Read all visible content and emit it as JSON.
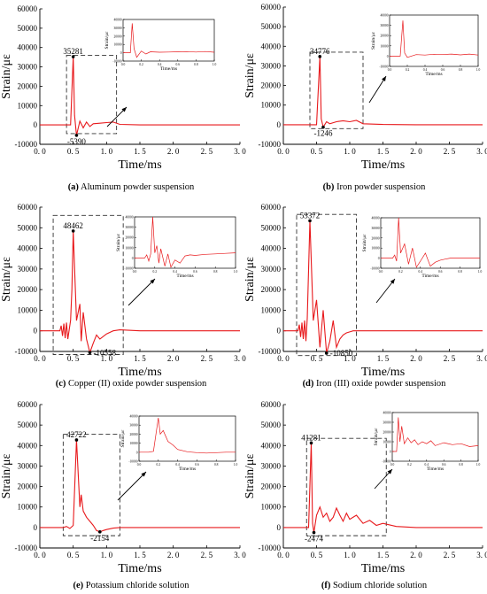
{
  "chart_data": [
    {
      "type": "line",
      "caption_tag": "(a)",
      "caption": "Aluminum powder suspension",
      "xlabel": "Time/ms",
      "ylabel": "Strain/με",
      "xlim": [
        0,
        3
      ],
      "ylim": [
        -10000,
        60000
      ],
      "xticks": [
        "0. 0",
        "0. 5",
        "1. 0",
        "1. 5",
        "2. 0",
        "2. 5",
        "3. 0"
      ],
      "yticks": [
        "-10000",
        "0",
        "10000",
        "20000",
        "30000",
        "40000",
        "50000",
        "60000"
      ],
      "series": [
        {
          "x": [
            0,
            0.46,
            0.5,
            0.52,
            0.55,
            0.6,
            0.65,
            0.7,
            0.75,
            0.8,
            0.9,
            1.0,
            1.1,
            1.2,
            1.5,
            2.0,
            3.0
          ],
          "y": [
            0,
            0,
            35281,
            5000,
            -5390,
            2000,
            -1500,
            1500,
            -800,
            600,
            900,
            1200,
            1500,
            300,
            0,
            0,
            0
          ]
        }
      ],
      "annotations": [
        {
          "label": "35281",
          "x": 0.5,
          "y": 35281,
          "position": "above"
        },
        {
          "label": "-5390",
          "x": 0.55,
          "y": -5390,
          "position": "below"
        }
      ],
      "zoom_box": {
        "x": [
          0.4,
          1.15
        ],
        "y": [
          -4500,
          36000
        ]
      },
      "inset": {
        "xlabel": "Time/ms",
        "ylabel": "Strain/με",
        "xlim": [
          0,
          1
        ],
        "ylim": [
          -10000,
          40000
        ],
        "xticks": [
          "0.0",
          "0.2",
          "0.4",
          "0.6",
          "0.8",
          "1.0"
        ],
        "yticks": [
          "-10000",
          "0",
          "10000",
          "20000",
          "30000",
          "40000"
        ],
        "series": [
          {
            "x": [
              0,
              0.08,
              0.1,
              0.12,
              0.15,
              0.2,
              0.25,
              0.3,
              0.4,
              0.5,
              0.6,
              0.7,
              0.8,
              0.9,
              1.0
            ],
            "y": [
              0,
              0,
              35281,
              5000,
              -5390,
              2000,
              -1500,
              1200,
              600,
              900,
              1200,
              1400,
              800,
              1500,
              600
            ]
          }
        ]
      }
    },
    {
      "type": "line",
      "caption_tag": "(b)",
      "caption": "Iron powder suspension",
      "xlabel": "Time/ms",
      "ylabel": "Strain/με",
      "xlim": [
        0,
        3
      ],
      "ylim": [
        -10000,
        60000
      ],
      "xticks": [
        "0. 0",
        "0. 5",
        "1. 0",
        "1. 5",
        "2. 0",
        "2. 5",
        "3. 0"
      ],
      "yticks": [
        "-10000",
        "0",
        "10000",
        "20000",
        "30000",
        "40000",
        "50000",
        "60000"
      ],
      "series": [
        {
          "x": [
            0,
            0.5,
            0.55,
            0.57,
            0.6,
            0.65,
            0.7,
            0.8,
            0.9,
            1.0,
            1.1,
            1.2,
            1.5,
            2.0,
            3.0
          ],
          "y": [
            0,
            0,
            34776,
            3000,
            -1246,
            1500,
            500,
            1500,
            2000,
            1500,
            2200,
            500,
            100,
            0,
            0
          ]
        }
      ],
      "annotations": [
        {
          "label": "34776",
          "x": 0.55,
          "y": 34776,
          "position": "above"
        },
        {
          "label": "-1246",
          "x": 0.6,
          "y": -1246,
          "position": "below"
        }
      ],
      "zoom_box": {
        "x": [
          0.4,
          1.2
        ],
        "y": [
          -2000,
          37000
        ]
      },
      "inset": {
        "xlabel": "Time/ms",
        "ylabel": "Strain/με",
        "xlim": [
          0,
          1
        ],
        "ylim": [
          -10000,
          40000
        ],
        "xticks": [
          "0.0",
          "0.2",
          "0.4",
          "0.6",
          "0.8",
          "1.0"
        ],
        "yticks": [
          "-10000",
          "0",
          "10000",
          "20000",
          "30000",
          "40000"
        ],
        "series": [
          {
            "x": [
              0,
              0.12,
              0.15,
              0.17,
              0.2,
              0.3,
              0.4,
              0.5,
              0.6,
              0.7,
              0.8,
              0.9,
              1.0
            ],
            "y": [
              0,
              0,
              34776,
              3000,
              -1246,
              1500,
              1000,
              1800,
              1500,
              2000,
              1200,
              2000,
              1000
            ]
          }
        ]
      }
    },
    {
      "type": "line",
      "caption_tag": "(c)",
      "caption": "Copper (II) oxide powder suspension",
      "xlabel": "Time/ms",
      "ylabel": "Strain/με",
      "xlim": [
        0,
        3
      ],
      "ylim": [
        -10000,
        60000
      ],
      "xticks": [
        "0. 0",
        "0. 5",
        "1. 0",
        "1. 5",
        "2. 0",
        "2. 5",
        "3. 0"
      ],
      "yticks": [
        "-10000",
        "0",
        "10000",
        "20000",
        "30000",
        "40000",
        "50000",
        "60000"
      ],
      "series": [
        {
          "x": [
            0,
            0.3,
            0.32,
            0.34,
            0.36,
            0.38,
            0.4,
            0.42,
            0.46,
            0.48,
            0.5,
            0.55,
            0.6,
            0.62,
            0.65,
            0.7,
            0.75,
            0.8,
            0.85,
            0.9,
            1.0,
            1.1,
            1.2,
            1.5,
            2.0,
            3.0
          ],
          "y": [
            0,
            0,
            2500,
            -2500,
            3500,
            -3500,
            4000,
            -4000,
            5000,
            20000,
            48462,
            5000,
            13000,
            -5000,
            9000,
            -4000,
            -10558,
            -6000,
            -2000,
            -4000,
            -1500,
            0,
            500,
            0,
            0,
            0
          ]
        }
      ],
      "annotations": [
        {
          "label": "48462",
          "x": 0.5,
          "y": 48462,
          "position": "above"
        },
        {
          "label": "-10558",
          "x": 0.75,
          "y": -10558,
          "position": "right"
        }
      ],
      "zoom_box": {
        "x": [
          0.2,
          1.25
        ],
        "y": [
          -11500,
          56000
        ]
      },
      "inset": {
        "xlabel": "Time/ms",
        "ylabel": "Strain/με",
        "xlim": [
          0,
          1
        ],
        "ylim": [
          -10000,
          40000
        ],
        "xticks": [
          "0.0",
          "0.2",
          "0.4",
          "0.6",
          "0.8",
          "1.0"
        ],
        "yticks": [
          "-10000",
          "0",
          "10000",
          "20000",
          "30000",
          "40000"
        ],
        "series": [
          {
            "x": [
              0,
              0.1,
              0.12,
              0.14,
              0.16,
              0.18,
              0.2,
              0.22,
              0.24,
              0.26,
              0.3,
              0.33,
              0.36,
              0.4,
              0.45,
              0.5,
              0.55,
              0.6,
              0.7,
              0.8,
              0.9,
              1.0
            ],
            "y": [
              0,
              0,
              3000,
              -3000,
              4000,
              40000,
              5000,
              12000,
              -5000,
              9000,
              -8000,
              4000,
              -9000,
              -2000,
              -5000,
              2000,
              3000,
              2500,
              3500,
              4000,
              4500,
              5000
            ]
          }
        ]
      }
    },
    {
      "type": "line",
      "caption_tag": "(d)",
      "caption": "Iron (III) oxide powder suspension",
      "xlabel": "Time/ms",
      "ylabel": "Strain/με",
      "xlim": [
        0,
        3
      ],
      "ylim": [
        -10000,
        60000
      ],
      "xticks": [
        "0. 0",
        "0. 5",
        "1. 0",
        "1. 5",
        "2. 0",
        "2. 5",
        "3. 0"
      ],
      "yticks": [
        "-10000",
        "0",
        "10000",
        "20000",
        "30000",
        "40000",
        "50000",
        "60000"
      ],
      "series": [
        {
          "x": [
            0,
            0.22,
            0.24,
            0.26,
            0.28,
            0.3,
            0.32,
            0.34,
            0.36,
            0.4,
            0.45,
            0.5,
            0.55,
            0.6,
            0.65,
            0.7,
            0.75,
            0.8,
            0.85,
            0.9,
            0.95,
            1.0,
            1.05,
            1.2,
            2.0,
            3.0
          ],
          "y": [
            0,
            0,
            3000,
            -3000,
            4000,
            -4000,
            5000,
            -5000,
            6000,
            53372,
            5000,
            15000,
            -8000,
            10000,
            -10850,
            -5000,
            5000,
            -8000,
            -4000,
            -2000,
            -1000,
            -500,
            0,
            0,
            0,
            0
          ]
        }
      ],
      "annotations": [
        {
          "label": "53372",
          "x": 0.4,
          "y": 53372,
          "position": "above"
        },
        {
          "label": "-10850",
          "x": 0.65,
          "y": -10850,
          "position": "right"
        }
      ],
      "zoom_box": {
        "x": [
          0.2,
          1.1
        ],
        "y": [
          -12000,
          56500
        ]
      },
      "inset": {
        "xlabel": "Time/ms",
        "ylabel": "Strain/με",
        "xlim": [
          0,
          1
        ],
        "ylim": [
          -10000,
          40000
        ],
        "xticks": [
          "0.0",
          "0.2",
          "0.4",
          "0.6",
          "0.8",
          "1.0"
        ],
        "yticks": [
          "-10000",
          "0",
          "10000",
          "20000",
          "30000",
          "40000"
        ],
        "series": [
          {
            "x": [
              0,
              0.12,
              0.14,
              0.16,
              0.18,
              0.2,
              0.24,
              0.28,
              0.32,
              0.36,
              0.4,
              0.45,
              0.5,
              0.55,
              0.6,
              0.65,
              0.7,
              0.8,
              0.9,
              1.0
            ],
            "y": [
              0,
              0,
              3000,
              -3000,
              40000,
              5000,
              14000,
              -6000,
              10000,
              -9000,
              -3000,
              5000,
              -8000,
              -4000,
              -2000,
              -1000,
              0,
              0,
              0,
              0
            ]
          }
        ]
      }
    },
    {
      "type": "line",
      "caption_tag": "(e)",
      "caption": "Potassium chloride solution",
      "xlabel": "Time/ms",
      "ylabel": "Strain/με",
      "xlim": [
        0,
        3
      ],
      "ylim": [
        -10000,
        60000
      ],
      "xticks": [
        "0. 0",
        "0. 5",
        "1. 0",
        "1. 5",
        "2. 0",
        "2. 5",
        "3. 0"
      ],
      "yticks": [
        "-10000",
        "0",
        "10000",
        "20000",
        "30000",
        "40000",
        "50000",
        "60000"
      ],
      "series": [
        {
          "x": [
            0,
            0.35,
            0.4,
            0.45,
            0.5,
            0.55,
            0.6,
            0.62,
            0.65,
            0.7,
            0.75,
            0.8,
            0.85,
            0.9,
            0.95,
            1.0,
            1.1,
            1.2,
            1.5,
            2.0,
            3.0
          ],
          "y": [
            0,
            0,
            500,
            -500,
            1000,
            42722,
            10000,
            16000,
            8000,
            5000,
            3000,
            1000,
            -1500,
            -2154,
            -1500,
            -1000,
            -300,
            0,
            0,
            0,
            0
          ]
        }
      ],
      "annotations": [
        {
          "label": "42722",
          "x": 0.55,
          "y": 42722,
          "position": "above"
        },
        {
          "label": "-2154",
          "x": 0.9,
          "y": -2154,
          "position": "below"
        }
      ],
      "zoom_box": {
        "x": [
          0.35,
          1.2
        ],
        "y": [
          -4000,
          45500
        ]
      },
      "inset": {
        "xlabel": "Time/ms",
        "ylabel": "Strain/με",
        "xlim": [
          0,
          1
        ],
        "ylim": [
          -10000,
          40000
        ],
        "xticks": [
          "0.0",
          "0.2",
          "0.4",
          "0.6",
          "0.8",
          "1.0"
        ],
        "yticks": [
          "-10000",
          "0",
          "10000",
          "20000",
          "30000",
          "40000"
        ],
        "series": [
          {
            "x": [
              0,
              0.1,
              0.15,
              0.2,
              0.22,
              0.25,
              0.3,
              0.35,
              0.4,
              0.5,
              0.6,
              0.7,
              0.8,
              0.9,
              1.0
            ],
            "y": [
              0,
              0,
              1000,
              38000,
              20000,
              24000,
              12000,
              8000,
              3000,
              500,
              -500,
              -1000,
              -500,
              0,
              0
            ]
          }
        ]
      }
    },
    {
      "type": "line",
      "caption_tag": "(f)",
      "caption": "Sodium chloride solution",
      "xlabel": "Time/ms",
      "ylabel": "Strain/με",
      "xlim": [
        0,
        3
      ],
      "ylim": [
        -10000,
        60000
      ],
      "xticks": [
        "0. 0",
        "0. 5",
        "1. 0",
        "1. 5",
        "2. 0",
        "2. 5",
        "3. 0"
      ],
      "yticks": [
        "-10000",
        "0",
        "10000",
        "20000",
        "30000",
        "40000",
        "50000",
        "60000"
      ],
      "series": [
        {
          "x": [
            0,
            0.38,
            0.42,
            0.44,
            0.46,
            0.5,
            0.55,
            0.6,
            0.65,
            0.7,
            0.75,
            0.8,
            0.85,
            0.9,
            0.95,
            1.0,
            1.1,
            1.2,
            1.3,
            1.4,
            1.5,
            1.7,
            2.0,
            3.0
          ],
          "y": [
            0,
            0,
            41281,
            2000,
            -2474,
            6000,
            10000,
            5000,
            7000,
            3000,
            5000,
            9500,
            6000,
            3000,
            7000,
            4000,
            6000,
            2000,
            3500,
            1000,
            2000,
            500,
            0,
            0
          ]
        }
      ],
      "annotations": [
        {
          "label": "41281",
          "x": 0.42,
          "y": 41281,
          "position": "above"
        },
        {
          "label": "-2474",
          "x": 0.46,
          "y": -2474,
          "position": "below"
        }
      ],
      "zoom_box": {
        "x": [
          0.35,
          1.55
        ],
        "y": [
          -4000,
          43500
        ]
      },
      "inset": {
        "xlabel": "Time/ms",
        "ylabel": "Strain/με",
        "xlim": [
          0,
          1
        ],
        "ylim": [
          -10000,
          40000
        ],
        "xticks": [
          "0.0",
          "0.2",
          "0.4",
          "0.6",
          "0.8",
          "1.0"
        ],
        "yticks": [
          "-10000",
          "0",
          "10000",
          "20000",
          "30000",
          "40000"
        ],
        "series": [
          {
            "x": [
              0,
              0.05,
              0.07,
              0.09,
              0.11,
              0.14,
              0.18,
              0.22,
              0.26,
              0.3,
              0.35,
              0.4,
              0.45,
              0.5,
              0.6,
              0.7,
              0.8,
              0.9,
              1.0
            ],
            "y": [
              0,
              0,
              35000,
              10000,
              26000,
              8000,
              14000,
              9000,
              12000,
              7000,
              10000,
              8000,
              11000,
              6000,
              9000,
              7000,
              8000,
              5000,
              6000
            ]
          }
        ]
      }
    }
  ],
  "colors": {
    "series": "#e8191c",
    "axis": "#000000",
    "box": "#333333"
  }
}
